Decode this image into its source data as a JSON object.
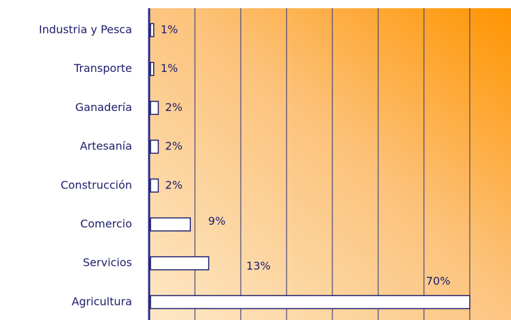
{
  "chart_data": {
    "type": "barh",
    "categories": [
      "Industria y Pesca",
      "Transporte",
      "Ganadería",
      "Artesanía",
      "Construcción",
      "Comercio",
      "Servicios",
      "Agricultura"
    ],
    "values": [
      1,
      1,
      2,
      2,
      2,
      9,
      13,
      70
    ],
    "value_labels": [
      "1%",
      "1%",
      "2%",
      "2%",
      "2%",
      "9%",
      "13%",
      "70%"
    ],
    "color": "#ffffff",
    "xlim": [
      0,
      79
    ],
    "xticks": [
      0,
      10,
      20,
      30,
      40,
      50,
      60,
      70
    ],
    "grid": true
  }
}
